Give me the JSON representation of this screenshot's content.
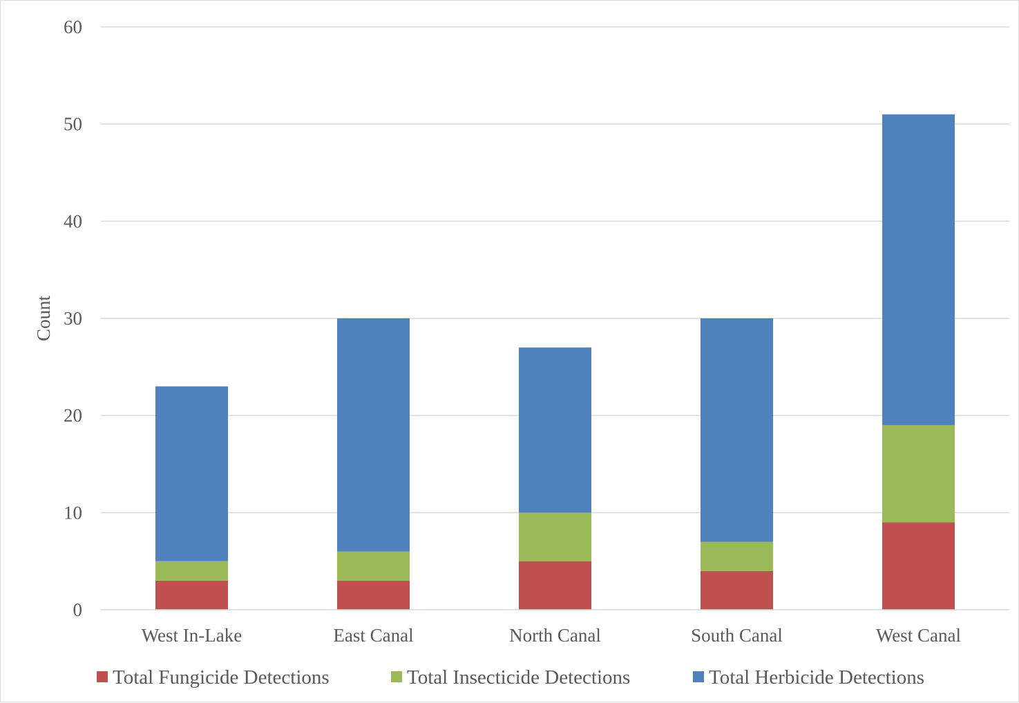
{
  "chart_data": {
    "type": "bar",
    "stacked": true,
    "title": "",
    "xlabel": "",
    "ylabel": "Count",
    "ylim": [
      0,
      60
    ],
    "y_ticks": [
      0,
      10,
      20,
      30,
      40,
      50,
      60
    ],
    "grid": true,
    "legend_position": "bottom",
    "categories": [
      "West In-Lake",
      "East Canal",
      "North Canal",
      "South Canal",
      "West Canal"
    ],
    "series": [
      {
        "name": "Total Fungicide Detections",
        "color": "#c0504d",
        "values": [
          3,
          3,
          5,
          4,
          9
        ]
      },
      {
        "name": "Total Insecticide Detections",
        "color": "#9bbb59",
        "values": [
          2,
          3,
          5,
          3,
          10
        ]
      },
      {
        "name": "Total Herbicide Detections",
        "color": "#4f81bd",
        "values": [
          18,
          24,
          17,
          23,
          32
        ]
      }
    ]
  }
}
